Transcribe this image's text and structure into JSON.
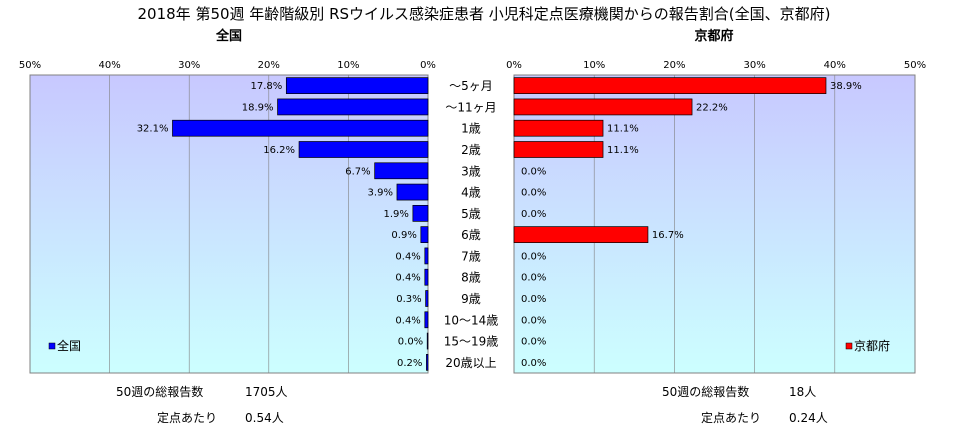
{
  "title": "2018年 第50週 年齢階級別 RSウイルス感染症患者 小児科定点医療機関からの報告割合(全国、京都府)",
  "colors": {
    "national_bar": "#0000ff",
    "kyoto_bar": "#ff0000",
    "plot_top": "#c8c8ff",
    "plot_bottom": "#ccffff",
    "grid": "#808080"
  },
  "chart_data": [
    {
      "type": "bar",
      "orientation": "horizontal",
      "direction": "right-to-left",
      "title": "全国",
      "legend": "全国",
      "legend_position": "bottom-left",
      "categories": [
        "～5ヶ月",
        "～11ヶ月",
        "1歳",
        "2歳",
        "3歳",
        "4歳",
        "5歳",
        "6歳",
        "7歳",
        "8歳",
        "9歳",
        "10～14歳",
        "15～19歳",
        "20歳以上"
      ],
      "values": [
        17.8,
        18.9,
        32.1,
        16.2,
        6.7,
        3.9,
        1.9,
        0.9,
        0.4,
        0.4,
        0.3,
        0.4,
        0.0,
        0.2
      ],
      "value_labels": [
        "17.8%",
        "18.9%",
        "32.1%",
        "16.2%",
        "6.7%",
        "3.9%",
        "1.9%",
        "0.9%",
        "0.4%",
        "0.4%",
        "0.3%",
        "0.4%",
        "0.0%",
        "0.2%"
      ],
      "xlim": [
        0,
        50
      ],
      "xticks": [
        "50%",
        "40%",
        "30%",
        "20%",
        "10%",
        "0%"
      ],
      "grid": true,
      "notes": [
        {
          "label": "50週の総報告数",
          "value": "1705人"
        },
        {
          "label": "定点あたり",
          "value": "0.54人"
        }
      ]
    },
    {
      "type": "bar",
      "orientation": "horizontal",
      "direction": "left-to-right",
      "title": "京都府",
      "legend": "京都府",
      "legend_position": "bottom-right",
      "categories": [
        "～5ヶ月",
        "～11ヶ月",
        "1歳",
        "2歳",
        "3歳",
        "4歳",
        "5歳",
        "6歳",
        "7歳",
        "8歳",
        "9歳",
        "10～14歳",
        "15～19歳",
        "20歳以上"
      ],
      "values": [
        38.9,
        22.2,
        11.1,
        11.1,
        0.0,
        0.0,
        0.0,
        16.7,
        0.0,
        0.0,
        0.0,
        0.0,
        0.0,
        0.0
      ],
      "value_labels": [
        "38.9%",
        "22.2%",
        "11.1%",
        "11.1%",
        "0.0%",
        "0.0%",
        "0.0%",
        "16.7%",
        "0.0%",
        "0.0%",
        "0.0%",
        "0.0%",
        "0.0%",
        "0.0%"
      ],
      "xlim": [
        0,
        50
      ],
      "xticks": [
        "0%",
        "10%",
        "20%",
        "30%",
        "40%",
        "50%"
      ],
      "grid": true,
      "notes": [
        {
          "label": "50週の総報告数",
          "value": "18人"
        },
        {
          "label": "定点あたり",
          "value": "0.24人"
        }
      ]
    }
  ]
}
